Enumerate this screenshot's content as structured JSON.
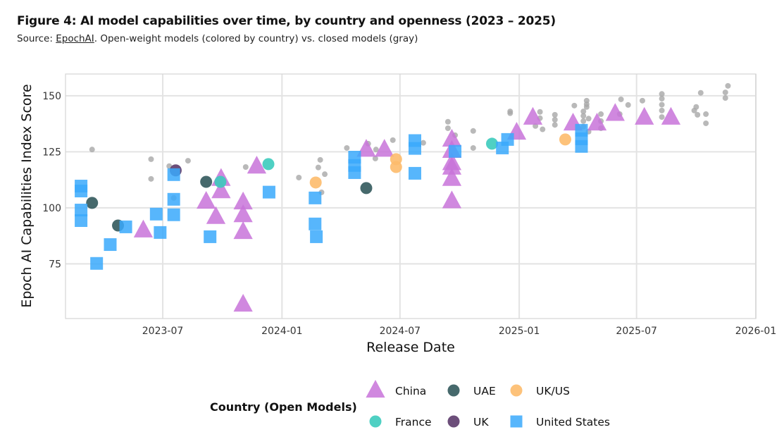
{
  "header": {
    "title": "Figure 4: AI model capabilities over time, by country and openness (2023 – 2025)",
    "subtitle_prefix": "Source: ",
    "subtitle_link": "EpochAI",
    "subtitle_rest": ". Open-weight models (colored by country) vs. closed models (gray)"
  },
  "chart_data": {
    "type": "scatter",
    "xlabel": "Release Date",
    "ylabel": "Epoch AI Capabilities Index Score",
    "xlim": [
      "2023-02-01",
      "2026-01-01"
    ],
    "ylim": [
      50.6,
      159.7
    ],
    "x_ticks": [
      "2023-07",
      "2024-01",
      "2024-07",
      "2025-01",
      "2025-07",
      "2026-01"
    ],
    "y_ticks": [
      75,
      100,
      125,
      150
    ],
    "grid": true,
    "legend_title": "Country (Open Models)",
    "legend_placement": "bottom",
    "closed_models": {
      "color": "#a8a8a8",
      "points": [
        [
          "2023-03-14",
          126
        ],
        [
          "2023-06-13",
          121.7
        ],
        [
          "2023-06-13",
          112.9
        ],
        [
          "2023-07-11",
          118.6
        ],
        [
          "2023-07-18",
          104.4
        ],
        [
          "2023-08-09",
          121
        ],
        [
          "2023-11-06",
          118.2
        ],
        [
          "2024-01-27",
          113.5
        ],
        [
          "2024-02-29",
          121.4
        ],
        [
          "2024-02-26",
          118
        ],
        [
          "2024-03-07",
          115
        ],
        [
          "2024-03-02",
          106.9
        ],
        [
          "2024-04-10",
          126.7
        ],
        [
          "2024-05-13",
          128.6
        ],
        [
          "2024-05-25",
          126
        ],
        [
          "2024-06-20",
          130.2
        ],
        [
          "2024-05-24",
          122
        ],
        [
          "2024-08-06",
          129
        ],
        [
          "2024-09-13",
          138.4
        ],
        [
          "2024-09-13",
          135.5
        ],
        [
          "2024-09-24",
          132.4
        ],
        [
          "2024-10-22",
          134.3
        ],
        [
          "2024-10-22",
          126.7
        ],
        [
          "2024-12-18",
          143
        ],
        [
          "2024-12-18",
          142.2
        ],
        [
          "2025-02-02",
          142.8
        ],
        [
          "2025-02-02",
          140
        ],
        [
          "2025-01-26",
          136.5
        ],
        [
          "2025-02-06",
          135
        ],
        [
          "2025-02-25",
          141.5
        ],
        [
          "2025-02-25",
          139.3
        ],
        [
          "2025-02-25",
          137
        ],
        [
          "2025-03-27",
          145.6
        ],
        [
          "2025-04-10",
          143
        ],
        [
          "2025-04-10",
          141
        ],
        [
          "2025-04-10",
          138.7
        ],
        [
          "2025-04-10",
          136.2
        ],
        [
          "2025-04-18",
          139.8
        ],
        [
          "2025-04-18",
          134
        ],
        [
          "2025-04-15",
          147.8
        ],
        [
          "2025-04-15",
          146.2
        ],
        [
          "2025-04-15",
          145
        ],
        [
          "2025-05-07",
          141.8
        ],
        [
          "2025-05-07",
          138.7
        ],
        [
          "2025-05-07",
          135.5
        ],
        [
          "2025-06-05",
          141.8
        ],
        [
          "2025-06-07",
          148.4
        ],
        [
          "2025-06-18",
          145.9
        ],
        [
          "2025-07-10",
          147.8
        ],
        [
          "2025-08-09",
          150.8
        ],
        [
          "2025-08-09",
          148.7
        ],
        [
          "2025-08-09",
          146
        ],
        [
          "2025-08-09",
          143.4
        ],
        [
          "2025-08-09",
          140.5
        ],
        [
          "2025-10-08",
          151.3
        ],
        [
          "2025-10-01",
          145
        ],
        [
          "2025-09-28",
          143.4
        ],
        [
          "2025-10-03",
          141.5
        ],
        [
          "2025-10-16",
          141.8
        ],
        [
          "2025-10-16",
          137.7
        ],
        [
          "2025-11-19",
          154.4
        ],
        [
          "2025-11-15",
          151.5
        ],
        [
          "2025-11-15",
          149
        ]
      ]
    },
    "series": [
      {
        "name": "China",
        "marker": "triangle",
        "color": "#c873d9",
        "points": [
          [
            "2023-06-01",
            90
          ],
          [
            "2023-09-06",
            102.8
          ],
          [
            "2023-09-21",
            96
          ],
          [
            "2023-09-29",
            113
          ],
          [
            "2023-09-29",
            107.5
          ],
          [
            "2023-11-02",
            102.5
          ],
          [
            "2023-11-02",
            96.8
          ],
          [
            "2023-11-02",
            89.3
          ],
          [
            "2023-11-02",
            56.9
          ],
          [
            "2023-11-23",
            118.5
          ],
          [
            "2024-05-10",
            126
          ],
          [
            "2024-06-07",
            126
          ],
          [
            "2024-09-19",
            130.5
          ],
          [
            "2024-09-19",
            125.5
          ],
          [
            "2024-09-19",
            120
          ],
          [
            "2024-09-19",
            118
          ],
          [
            "2024-09-19",
            113
          ],
          [
            "2024-09-19",
            103
          ],
          [
            "2024-12-28",
            133.6
          ],
          [
            "2025-01-22",
            140.3
          ],
          [
            "2025-03-25",
            137.7
          ],
          [
            "2025-05-01",
            137.7
          ],
          [
            "2025-05-29",
            142
          ],
          [
            "2025-07-13",
            140.3
          ],
          [
            "2025-08-23",
            140.3
          ]
        ]
      },
      {
        "name": "UAE",
        "marker": "circle",
        "color": "#32595c",
        "points": [
          [
            "2023-03-14",
            102.2
          ],
          [
            "2023-04-23",
            92.1
          ],
          [
            "2023-09-06",
            111.6
          ],
          [
            "2024-05-10",
            108.8
          ]
        ]
      },
      {
        "name": "UK/US",
        "marker": "circle",
        "color": "#fdbb6c",
        "points": [
          [
            "2024-02-22",
            111.3
          ],
          [
            "2024-06-25",
            121.7
          ],
          [
            "2024-06-25",
            118.2
          ],
          [
            "2025-03-13",
            130.5
          ]
        ]
      },
      {
        "name": "France",
        "marker": "circle",
        "color": "#3ccbbd",
        "points": [
          [
            "2023-09-28",
            111.6
          ],
          [
            "2023-12-11",
            119.5
          ],
          [
            "2024-11-20",
            128.6
          ]
        ]
      },
      {
        "name": "UK",
        "marker": "circle",
        "color": "#5c3b6b",
        "points": [
          [
            "2023-07-21",
            116.7
          ]
        ]
      },
      {
        "name": "United States",
        "marker": "square",
        "color": "#3aa9fb",
        "points": [
          [
            "2023-02-25",
            109.7
          ],
          [
            "2023-02-25",
            107.5
          ],
          [
            "2023-02-25",
            99
          ],
          [
            "2023-02-25",
            94.3
          ],
          [
            "2023-03-21",
            75.2
          ],
          [
            "2023-04-11",
            83.6
          ],
          [
            "2023-05-05",
            91.5
          ],
          [
            "2023-06-21",
            97.2
          ],
          [
            "2023-06-27",
            89
          ],
          [
            "2023-07-18",
            114.8
          ],
          [
            "2023-07-18",
            103.8
          ],
          [
            "2023-07-18",
            96.9
          ],
          [
            "2023-09-12",
            87.1
          ],
          [
            "2023-12-12",
            107
          ],
          [
            "2024-02-21",
            104.4
          ],
          [
            "2024-02-21",
            92.8
          ],
          [
            "2024-02-23",
            87.1
          ],
          [
            "2024-04-22",
            122.6
          ],
          [
            "2024-04-22",
            118.9
          ],
          [
            "2024-04-22",
            115.7
          ],
          [
            "2024-07-24",
            130
          ],
          [
            "2024-07-24",
            126.5
          ],
          [
            "2024-07-24",
            115.4
          ],
          [
            "2024-09-24",
            125.2
          ],
          [
            "2024-12-06",
            126.7
          ],
          [
            "2024-12-14",
            130.5
          ],
          [
            "2025-04-07",
            134.6
          ],
          [
            "2025-04-07",
            130.8
          ],
          [
            "2025-04-07",
            127.4
          ]
        ]
      }
    ]
  }
}
